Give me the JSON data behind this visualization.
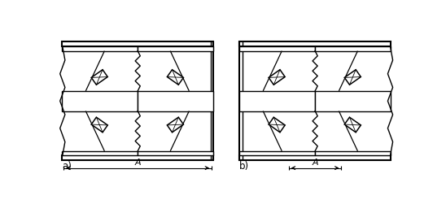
{
  "figure_width": 5.48,
  "figure_height": 2.46,
  "dpi": 100,
  "bg": "#ffffff",
  "lc": "#000000",
  "label_a": "A",
  "label_left": "a)",
  "label_right": "b)"
}
